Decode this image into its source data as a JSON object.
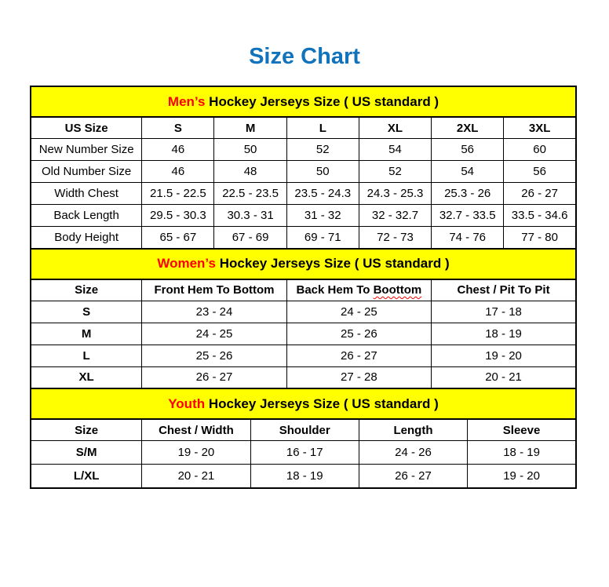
{
  "page": {
    "title": "Size Chart"
  },
  "colors": {
    "title_blue": "#1173BB",
    "banner_yellow": "#FFFF00",
    "accent_red": "#FF0000",
    "line_black": "#000000"
  },
  "tables": [
    {
      "name": "mens",
      "banner": {
        "highlight": "Men’s",
        "rest": " Hockey Jerseys Size ( US standard )"
      },
      "columns": [
        "US Size",
        "S",
        "M",
        "L",
        "XL",
        "2XL",
        "3XL"
      ],
      "rows": [
        [
          "New Number Size",
          "46",
          "50",
          "52",
          "54",
          "56",
          "60"
        ],
        [
          "Old Number Size",
          "46",
          "48",
          "50",
          "52",
          "54",
          "56"
        ],
        [
          "Width Chest",
          "21.5 - 22.5",
          "22.5 - 23.5",
          "23.5 - 24.3",
          "24.3 - 25.3",
          "25.3 - 26",
          "26 - 27"
        ],
        [
          "Back Length",
          "29.5 - 30.3",
          "30.3 - 31",
          "31 - 32",
          "32 - 32.7",
          "32.7 - 33.5",
          "33.5 - 34.6"
        ],
        [
          "Body Height",
          "65 - 67",
          "67 - 69",
          "69 - 71",
          "72 - 73",
          "74 - 76",
          "77 - 80"
        ]
      ]
    },
    {
      "name": "womens",
      "banner": {
        "highlight": "Women’s",
        "rest": " Hockey Jerseys Size ( US standard )"
      },
      "columns": [
        "Size",
        "Front Hem To Bottom",
        {
          "pre": "Back Hem To ",
          "err": "Boottom"
        },
        "Chest / Pit To Pit"
      ],
      "rows": [
        [
          "S",
          "23 - 24",
          "24 - 25",
          "17 - 18"
        ],
        [
          "M",
          "24 - 25",
          "25 - 26",
          "18 - 19"
        ],
        [
          "L",
          "25 - 26",
          "26 - 27",
          "19 - 20"
        ],
        [
          "XL",
          "26 - 27",
          "27 - 28",
          "20 - 21"
        ]
      ]
    },
    {
      "name": "youth",
      "banner": {
        "highlight": "Youth",
        "rest": " Hockey Jerseys Size ( US standard )"
      },
      "columns": [
        "Size",
        "Chest / Width",
        "Shoulder",
        "Length",
        "Sleeve"
      ],
      "rows": [
        [
          "S/M",
          "19 - 20",
          "16 - 17",
          "24 - 26",
          "18 - 19"
        ],
        [
          "L/XL",
          "20 - 21",
          "18 - 19",
          "26 - 27",
          "19 - 20"
        ]
      ]
    }
  ]
}
